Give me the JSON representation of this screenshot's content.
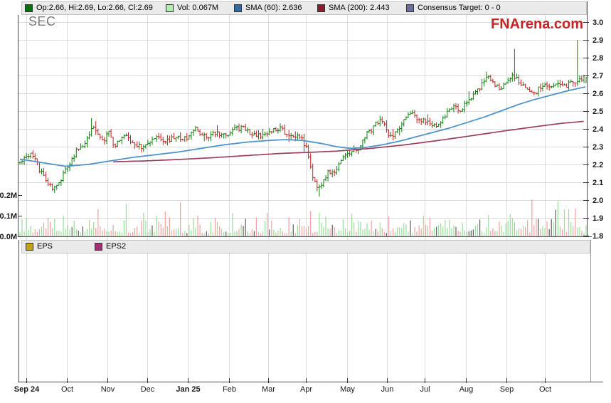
{
  "title": "SEC",
  "watermark": "FNArena.com",
  "header": {
    "legend": [
      {
        "name": "ohlc",
        "label": "Op:2.66, Hi:2.69, Lo:2.66, Cl:2.69",
        "color": "#0a6e0a"
      },
      {
        "name": "volume",
        "label": "Vol: 0.067M",
        "color": "#aef0ae"
      },
      {
        "name": "sma60",
        "label": "SMA (60): 2.636",
        "color": "#2e6da4"
      },
      {
        "name": "sma200",
        "label": "SMA (200): 2.443",
        "color": "#8e1a2c"
      },
      {
        "name": "consensus",
        "label": "Consensus Target: 0 - 0",
        "color": "#6e6e9e"
      }
    ]
  },
  "eps_legend": [
    {
      "label": "EPS",
      "color": "#c3a30a"
    },
    {
      "label": "EPS2",
      "color": "#a03078"
    }
  ],
  "chart_data": {
    "type": "candlestick",
    "symbol": "SEC",
    "last_bar": {
      "open": 2.66,
      "high": 2.69,
      "low": 2.66,
      "close": 2.69
    },
    "last_volume": "0.067M",
    "sma60_last": 2.636,
    "sma200_last": 2.443,
    "consensus_target": "0 - 0",
    "price_axis": {
      "min": 1.8,
      "max": 3.0,
      "ticks": [
        "3.0",
        "2.9",
        "2.8",
        "2.7",
        "2.6",
        "2.5",
        "2.4",
        "2.3",
        "2.2",
        "2.1",
        "2.0",
        "1.9",
        "1.8"
      ]
    },
    "volume_axis": {
      "ticks": [
        "0.2M",
        "0.1M",
        "0.0M"
      ],
      "values": [
        0.2,
        0.1,
        0.0
      ]
    },
    "x_axis": {
      "months": [
        {
          "label": "Sep 24",
          "bold": true,
          "f": 0.014
        },
        {
          "label": "Oct",
          "bold": false,
          "f": 0.085
        },
        {
          "label": "Nov",
          "bold": false,
          "f": 0.157
        },
        {
          "label": "Dec",
          "bold": false,
          "f": 0.227
        },
        {
          "label": "Jan 25",
          "bold": true,
          "f": 0.298
        },
        {
          "label": "Feb",
          "bold": false,
          "f": 0.371
        },
        {
          "label": "Mar",
          "bold": false,
          "f": 0.439
        },
        {
          "label": "Apr",
          "bold": false,
          "f": 0.506
        },
        {
          "label": "May",
          "bold": false,
          "f": 0.578
        },
        {
          "label": "Jun",
          "bold": false,
          "f": 0.648
        },
        {
          "label": "Jul",
          "bold": false,
          "f": 0.715
        },
        {
          "label": "Aug",
          "bold": false,
          "f": 0.787
        },
        {
          "label": "Sep",
          "bold": false,
          "f": 0.859
        },
        {
          "label": "Oct",
          "bold": false,
          "f": 0.926
        }
      ]
    },
    "price_path": [
      [
        0.0,
        2.21
      ],
      [
        0.01,
        2.25
      ],
      [
        0.022,
        2.26
      ],
      [
        0.035,
        2.17
      ],
      [
        0.048,
        2.1
      ],
      [
        0.058,
        2.06
      ],
      [
        0.07,
        2.1
      ],
      [
        0.08,
        2.16
      ],
      [
        0.09,
        2.22
      ],
      [
        0.1,
        2.28
      ],
      [
        0.11,
        2.3
      ],
      [
        0.118,
        2.33
      ],
      [
        0.128,
        2.42
      ],
      [
        0.138,
        2.36
      ],
      [
        0.148,
        2.33
      ],
      [
        0.157,
        2.38
      ],
      [
        0.168,
        2.3
      ],
      [
        0.178,
        2.34
      ],
      [
        0.19,
        2.36
      ],
      [
        0.2,
        2.32
      ],
      [
        0.21,
        2.3
      ],
      [
        0.227,
        2.31
      ],
      [
        0.24,
        2.35
      ],
      [
        0.252,
        2.33
      ],
      [
        0.265,
        2.34
      ],
      [
        0.278,
        2.36
      ],
      [
        0.29,
        2.34
      ],
      [
        0.298,
        2.36
      ],
      [
        0.31,
        2.4
      ],
      [
        0.322,
        2.36
      ],
      [
        0.335,
        2.36
      ],
      [
        0.348,
        2.38
      ],
      [
        0.36,
        2.37
      ],
      [
        0.371,
        2.38
      ],
      [
        0.383,
        2.4
      ],
      [
        0.395,
        2.41
      ],
      [
        0.407,
        2.37
      ],
      [
        0.42,
        2.36
      ],
      [
        0.439,
        2.38
      ],
      [
        0.45,
        2.4
      ],
      [
        0.462,
        2.4
      ],
      [
        0.474,
        2.36
      ],
      [
        0.484,
        2.37
      ],
      [
        0.495,
        2.35
      ],
      [
        0.506,
        2.3
      ],
      [
        0.513,
        2.18
      ],
      [
        0.52,
        2.1
      ],
      [
        0.528,
        2.06
      ],
      [
        0.536,
        2.12
      ],
      [
        0.545,
        2.16
      ],
      [
        0.555,
        2.14
      ],
      [
        0.565,
        2.22
      ],
      [
        0.578,
        2.26
      ],
      [
        0.59,
        2.28
      ],
      [
        0.6,
        2.3
      ],
      [
        0.61,
        2.36
      ],
      [
        0.622,
        2.4
      ],
      [
        0.634,
        2.45
      ],
      [
        0.643,
        2.42
      ],
      [
        0.648,
        2.38
      ],
      [
        0.655,
        2.35
      ],
      [
        0.662,
        2.38
      ],
      [
        0.672,
        2.42
      ],
      [
        0.682,
        2.46
      ],
      [
        0.692,
        2.49
      ],
      [
        0.702,
        2.46
      ],
      [
        0.716,
        2.44
      ],
      [
        0.726,
        2.42
      ],
      [
        0.736,
        2.41
      ],
      [
        0.746,
        2.46
      ],
      [
        0.756,
        2.5
      ],
      [
        0.766,
        2.53
      ],
      [
        0.776,
        2.5
      ],
      [
        0.788,
        2.54
      ],
      [
        0.798,
        2.58
      ],
      [
        0.808,
        2.62
      ],
      [
        0.818,
        2.66
      ],
      [
        0.828,
        2.7
      ],
      [
        0.838,
        2.65
      ],
      [
        0.848,
        2.63
      ],
      [
        0.858,
        2.66
      ],
      [
        0.868,
        2.7
      ],
      [
        0.878,
        2.68
      ],
      [
        0.888,
        2.64
      ],
      [
        0.898,
        2.62
      ],
      [
        0.908,
        2.6
      ],
      [
        0.918,
        2.63
      ],
      [
        0.927,
        2.65
      ],
      [
        0.938,
        2.63
      ],
      [
        0.95,
        2.66
      ],
      [
        0.962,
        2.64
      ],
      [
        0.974,
        2.66
      ],
      [
        0.985,
        2.67
      ],
      [
        1.0,
        2.69
      ]
    ],
    "sma60_path": [
      [
        0.0,
        2.23
      ],
      [
        0.04,
        2.21
      ],
      [
        0.08,
        2.19
      ],
      [
        0.12,
        2.2
      ],
      [
        0.16,
        2.22
      ],
      [
        0.2,
        2.24
      ],
      [
        0.24,
        2.255
      ],
      [
        0.28,
        2.27
      ],
      [
        0.32,
        2.29
      ],
      [
        0.36,
        2.31
      ],
      [
        0.4,
        2.325
      ],
      [
        0.44,
        2.335
      ],
      [
        0.47,
        2.34
      ],
      [
        0.5,
        2.335
      ],
      [
        0.53,
        2.32
      ],
      [
        0.56,
        2.3
      ],
      [
        0.585,
        2.29
      ],
      [
        0.61,
        2.295
      ],
      [
        0.64,
        2.31
      ],
      [
        0.67,
        2.33
      ],
      [
        0.7,
        2.355
      ],
      [
        0.73,
        2.38
      ],
      [
        0.76,
        2.405
      ],
      [
        0.79,
        2.435
      ],
      [
        0.82,
        2.465
      ],
      [
        0.85,
        2.5
      ],
      [
        0.88,
        2.535
      ],
      [
        0.91,
        2.565
      ],
      [
        0.94,
        2.59
      ],
      [
        0.97,
        2.615
      ],
      [
        1.0,
        2.636
      ]
    ],
    "sma200_path": [
      [
        0.165,
        2.215
      ],
      [
        0.22,
        2.22
      ],
      [
        0.28,
        2.228
      ],
      [
        0.34,
        2.238
      ],
      [
        0.4,
        2.25
      ],
      [
        0.46,
        2.262
      ],
      [
        0.51,
        2.268
      ],
      [
        0.56,
        2.275
      ],
      [
        0.62,
        2.29
      ],
      [
        0.68,
        2.31
      ],
      [
        0.74,
        2.335
      ],
      [
        0.8,
        2.362
      ],
      [
        0.86,
        2.39
      ],
      [
        0.92,
        2.416
      ],
      [
        0.96,
        2.432
      ],
      [
        1.0,
        2.443
      ]
    ],
    "spikes": [
      {
        "t": 0.128,
        "high": 2.46
      },
      {
        "t": 0.528,
        "low": 2.02
      },
      {
        "t": 0.873,
        "high": 2.85
      },
      {
        "t": 0.984,
        "high": 2.9
      }
    ],
    "volume_profile": [
      [
        0,
        0.055
      ],
      [
        0.08,
        0.06
      ],
      [
        0.15,
        0.055
      ],
      [
        0.25,
        0.05
      ],
      [
        0.35,
        0.05
      ],
      [
        0.45,
        0.05
      ],
      [
        0.52,
        0.055
      ],
      [
        0.6,
        0.05
      ],
      [
        0.68,
        0.055
      ],
      [
        0.76,
        0.05
      ],
      [
        0.84,
        0.06
      ],
      [
        0.92,
        0.06
      ],
      [
        1,
        0.065
      ]
    ],
    "colors": {
      "up": "#0d800d",
      "down": "#c32424",
      "vol_up": "#98e098",
      "vol_down": "#f2a0a0",
      "vol_neutral": "#5e5e5e",
      "sma60": "#4e93c9",
      "sma200": "#9b3f5c",
      "grid": "#dcdcdc",
      "axis": "#4a4a4a",
      "label": "#1a1a1a"
    }
  }
}
